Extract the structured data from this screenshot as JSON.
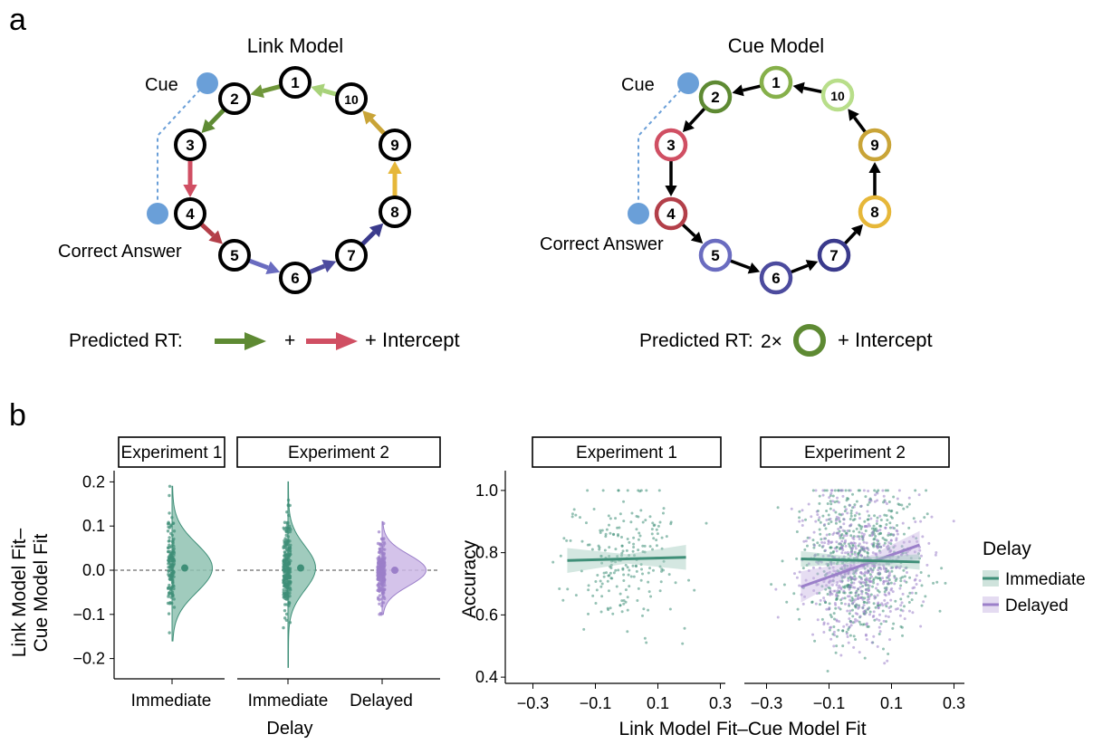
{
  "panel_a": {
    "label": "a",
    "link_model": {
      "title": "Link Model",
      "cue_label": "Cue",
      "answer_label": "Correct Answer",
      "nodes": [
        "1",
        "2",
        "3",
        "4",
        "5",
        "6",
        "7",
        "8",
        "9",
        "10"
      ],
      "predicted_prefix": "Predicted RT:",
      "plus": "+",
      "intercept": "+ Intercept"
    },
    "cue_model": {
      "title": "Cue Model",
      "cue_label": "Cue",
      "answer_label": "Correct Answer",
      "nodes": [
        "1",
        "2",
        "3",
        "4",
        "5",
        "6",
        "7",
        "8",
        "9",
        "10"
      ],
      "predicted_prefix": "Predicted RT:",
      "multiplier": "2×",
      "intercept": "+ Intercept"
    },
    "colors": {
      "pair_1_2": "#6f963a",
      "pair_2_3": "#5e8a33",
      "pair_10_1": "#a8d27a",
      "pair_9_10": "#c9a437",
      "pair_8_9": "#e6b739",
      "pair_3_4": "#d04f63",
      "pair_4_5": "#b33f49",
      "pair_5_6": "#6a6cc0",
      "pair_6_7": "#4c4b9e",
      "pair_7_8": "#3a3a8c",
      "cue_dot": "#6a9fd8"
    }
  },
  "panel_b": {
    "label": "b",
    "left": {
      "strip1": "Experiment 1",
      "strip2": "Experiment 2",
      "y_label_line1": "Link Model Fit–",
      "y_label_line2": "Cue Model Fit",
      "y_ticks": [
        "0.2",
        "0.1",
        "0.0",
        "−0.1",
        "−0.2"
      ],
      "x_labels": [
        "Immediate",
        "Immediate",
        "Delayed"
      ],
      "x_title": "Delay"
    },
    "right": {
      "strip1": "Experiment 1",
      "strip2": "Experiment 2",
      "y_label": "Accuracy",
      "y_ticks": [
        "1.0",
        "0.8",
        "0.6",
        "0.4"
      ],
      "x_ticks": [
        "−0.3",
        "−0.1",
        "0.1",
        "0.3"
      ],
      "x_title": "Link Model Fit–Cue Model Fit"
    },
    "legend": {
      "title": "Delay",
      "items": [
        {
          "label": "Immediate",
          "color": "#3f8f78"
        },
        {
          "label": "Delayed",
          "color": "#9b7fc9"
        }
      ]
    }
  },
  "chart_data": [
    {
      "type": "violin",
      "facet": "Experiment 1",
      "categories": [
        "Immediate"
      ],
      "ylabel": "Link Model Fit–Cue Model Fit",
      "ylim": [
        -0.22,
        0.21
      ],
      "series": [
        {
          "name": "Immediate",
          "color": "#3f8f78",
          "mean": 0.005,
          "min": -0.16,
          "max": 0.19
        }
      ]
    },
    {
      "type": "violin",
      "facet": "Experiment 2",
      "categories": [
        "Immediate",
        "Delayed"
      ],
      "xlabel": "Delay",
      "ylim": [
        -0.22,
        0.21
      ],
      "series": [
        {
          "name": "Immediate",
          "color": "#3f8f78",
          "mean": 0.005,
          "min": -0.22,
          "max": 0.2
        },
        {
          "name": "Delayed",
          "color": "#9b7fc9",
          "mean": 0.0,
          "min": -0.1,
          "max": 0.11
        }
      ]
    },
    {
      "type": "scatter",
      "facet": "Experiment 1",
      "xlabel": "Link Model Fit–Cue Model Fit",
      "ylabel": "Accuracy",
      "xlim": [
        -0.33,
        0.33
      ],
      "ylim": [
        0.38,
        1.02
      ],
      "series": [
        {
          "name": "Immediate",
          "color": "#3f8f78",
          "fit_line": [
            [
              -0.19,
              0.775
            ],
            [
              0.19,
              0.785
            ]
          ],
          "ci_low": [
            [
              -0.19,
              0.735
            ],
            [
              0.0,
              0.765
            ],
            [
              0.19,
              0.745
            ]
          ],
          "ci_high": [
            [
              -0.19,
              0.815
            ],
            [
              0.0,
              0.795
            ],
            [
              0.19,
              0.825
            ]
          ]
        }
      ]
    },
    {
      "type": "scatter",
      "facet": "Experiment 2",
      "xlabel": "Link Model Fit–Cue Model Fit",
      "ylabel": "Accuracy",
      "xlim": [
        -0.33,
        0.33
      ],
      "ylim": [
        0.38,
        1.02
      ],
      "series": [
        {
          "name": "Immediate",
          "color": "#3f8f78",
          "fit_line": [
            [
              -0.19,
              0.78
            ],
            [
              0.19,
              0.77
            ]
          ],
          "ci_low": [
            [
              -0.19,
              0.755
            ],
            [
              0.0,
              0.765
            ],
            [
              0.19,
              0.745
            ]
          ],
          "ci_high": [
            [
              -0.19,
              0.805
            ],
            [
              0.0,
              0.785
            ],
            [
              0.19,
              0.795
            ]
          ]
        },
        {
          "name": "Delayed",
          "color": "#9b7fc9",
          "fit_line": [
            [
              -0.19,
              0.69
            ],
            [
              0.19,
              0.825
            ]
          ],
          "ci_low": [
            [
              -0.19,
              0.64
            ],
            [
              0.0,
              0.745
            ],
            [
              0.19,
              0.78
            ]
          ],
          "ci_high": [
            [
              -0.19,
              0.74
            ],
            [
              0.0,
              0.775
            ],
            [
              0.19,
              0.87
            ]
          ]
        }
      ]
    }
  ]
}
